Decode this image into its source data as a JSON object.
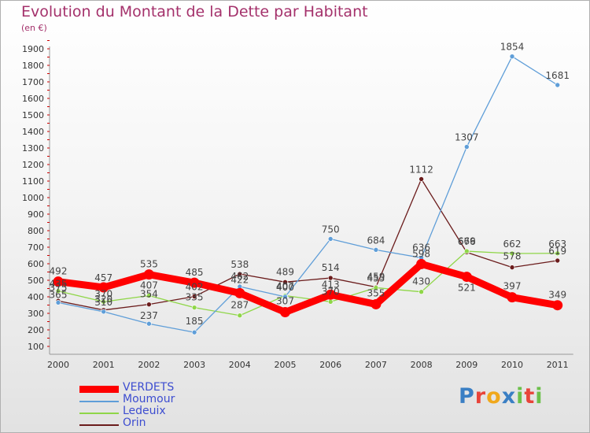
{
  "title": "Evolution du Montant de la Dette par Habitant",
  "unit": "(en €)",
  "chart_data": {
    "type": "line",
    "x": [
      "2000",
      "2001",
      "2002",
      "2003",
      "2004",
      "2005",
      "2006",
      "2007",
      "2008",
      "2009",
      "2010",
      "2011"
    ],
    "y_ticks": [
      100,
      200,
      300,
      400,
      500,
      600,
      700,
      800,
      900,
      1000,
      1100,
      1200,
      1300,
      1400,
      1500,
      1600,
      1700,
      1800,
      1900
    ],
    "ylim": [
      100,
      1900
    ],
    "grid": false,
    "legend_position": "bottom-left",
    "series": [
      {
        "name": "VERDETS",
        "color": "#ff0000",
        "values": [
          492,
          457,
          535,
          485,
          422,
          307,
          413,
          355,
          598,
          521,
          397,
          349
        ]
      },
      {
        "name": "Moumour",
        "color": "#5f9ed8",
        "values": [
          365,
          310,
          237,
          185,
          462,
          400,
          750,
          684,
          636,
          1307,
          1854,
          1681
        ]
      },
      {
        "name": "Ledeuix",
        "color": "#8fd648",
        "values": [
          435,
          370,
          407,
          335,
          287,
          407,
          370,
          455,
          430,
          676,
          662,
          663
        ]
      },
      {
        "name": "Orin",
        "color": "#6b1c1c",
        "values": [
          375,
          320,
          354,
          402,
          538,
          489,
          514,
          459,
          1112,
          669,
          578,
          619
        ]
      }
    ],
    "point_labels": [
      {
        "s": 0,
        "i": 0,
        "text": "492",
        "dy": -13
      },
      {
        "s": 0,
        "i": 1,
        "text": "457",
        "dy": -12
      },
      {
        "s": 0,
        "i": 2,
        "text": "535",
        "dy": -13
      },
      {
        "s": 0,
        "i": 3,
        "text": "485",
        "dy": -13
      },
      {
        "s": 0,
        "i": 4,
        "text": "422",
        "dy": -17
      },
      {
        "s": 0,
        "i": 5,
        "text": "307",
        "dy": -14
      },
      {
        "s": 0,
        "i": 6,
        "text": "413",
        "dy": -13
      },
      {
        "s": 0,
        "i": 7,
        "text": "355",
        "dy": -14
      },
      {
        "s": 0,
        "i": 8,
        "text": "598",
        "dy": -13
      },
      {
        "s": 0,
        "i": 9,
        "text": "521",
        "dy": 14
      },
      {
        "s": 0,
        "i": 10,
        "text": "397",
        "dy": -14
      },
      {
        "s": 0,
        "i": 11,
        "text": "349",
        "dy": -13
      },
      {
        "s": 1,
        "i": 0,
        "text": "365",
        "dy": -10
      },
      {
        "s": 1,
        "i": 1,
        "text": "310",
        "dy": -12
      },
      {
        "s": 1,
        "i": 2,
        "text": "237",
        "dy": -10
      },
      {
        "s": 1,
        "i": 3,
        "text": "185",
        "dy": -14
      },
      {
        "s": 1,
        "i": 4,
        "text": "462",
        "dy": -13
      },
      {
        "s": 1,
        "i": 5,
        "text": "400",
        "dy": -12
      },
      {
        "s": 1,
        "i": 6,
        "text": "750",
        "dy": -12
      },
      {
        "s": 1,
        "i": 7,
        "text": "684",
        "dy": -12
      },
      {
        "s": 1,
        "i": 8,
        "text": "636",
        "dy": -13
      },
      {
        "s": 1,
        "i": 9,
        "text": "1307",
        "dy": -12
      },
      {
        "s": 1,
        "i": 10,
        "text": "1854",
        "dy": -12
      },
      {
        "s": 1,
        "i": 11,
        "text": "1681",
        "dy": -12
      },
      {
        "s": 2,
        "i": 0,
        "text": "435",
        "dy": -9
      },
      {
        "s": 2,
        "i": 1,
        "text": "370",
        "dy": -10
      },
      {
        "s": 2,
        "i": 2,
        "text": "407",
        "dy": -13
      },
      {
        "s": 2,
        "i": 3,
        "text": "335",
        "dy": -13
      },
      {
        "s": 2,
        "i": 4,
        "text": "287",
        "dy": -13
      },
      {
        "s": 2,
        "i": 5,
        "text": "407",
        "dy": -12
      },
      {
        "s": 2,
        "i": 6,
        "text": "370",
        "dy": -13
      },
      {
        "s": 2,
        "i": 7,
        "text": "455",
        "dy": -12
      },
      {
        "s": 2,
        "i": 8,
        "text": "430",
        "dy": -13
      },
      {
        "s": 2,
        "i": 9,
        "text": "676",
        "dy": -12
      },
      {
        "s": 2,
        "i": 10,
        "text": "662",
        "dy": -12
      },
      {
        "s": 2,
        "i": 11,
        "text": "663",
        "dy": -12
      },
      {
        "s": 3,
        "i": 0,
        "text": "375",
        "dy": -17
      },
      {
        "s": 3,
        "i": 1,
        "text": "320",
        "dy": -14
      },
      {
        "s": 3,
        "i": 2,
        "text": "354",
        "dy": -13
      },
      {
        "s": 3,
        "i": 3,
        "text": "402",
        "dy": -12
      },
      {
        "s": 3,
        "i": 4,
        "text": "538",
        "dy": -12
      },
      {
        "s": 3,
        "i": 5,
        "text": "489",
        "dy": -13
      },
      {
        "s": 3,
        "i": 6,
        "text": "514",
        "dy": -13
      },
      {
        "s": 3,
        "i": 7,
        "text": "459",
        "dy": -13
      },
      {
        "s": 3,
        "i": 8,
        "text": "1112",
        "dy": -12
      },
      {
        "s": 3,
        "i": 9,
        "text": "669",
        "dy": -14
      },
      {
        "s": 3,
        "i": 10,
        "text": "578",
        "dy": -14
      },
      {
        "s": 3,
        "i": 11,
        "text": "619",
        "dy": -12
      }
    ]
  },
  "legend": {
    "items": [
      {
        "label": "VERDETS",
        "color": "#ff0000"
      },
      {
        "label": "Moumour",
        "color": "#5f9ed8"
      },
      {
        "label": "Ledeuix",
        "color": "#8fd648"
      },
      {
        "label": "Orin",
        "color": "#6b1c1c"
      }
    ]
  },
  "brand": {
    "text": "Proxiti",
    "letters": [
      "P",
      "r",
      "o",
      "x",
      "i",
      "t",
      "i"
    ],
    "colors": [
      "#3a7fc4",
      "#e8443a",
      "#f0a81c",
      "#3a7fc4",
      "#6cc04a",
      "#e8443a",
      "#6cc04a"
    ]
  }
}
